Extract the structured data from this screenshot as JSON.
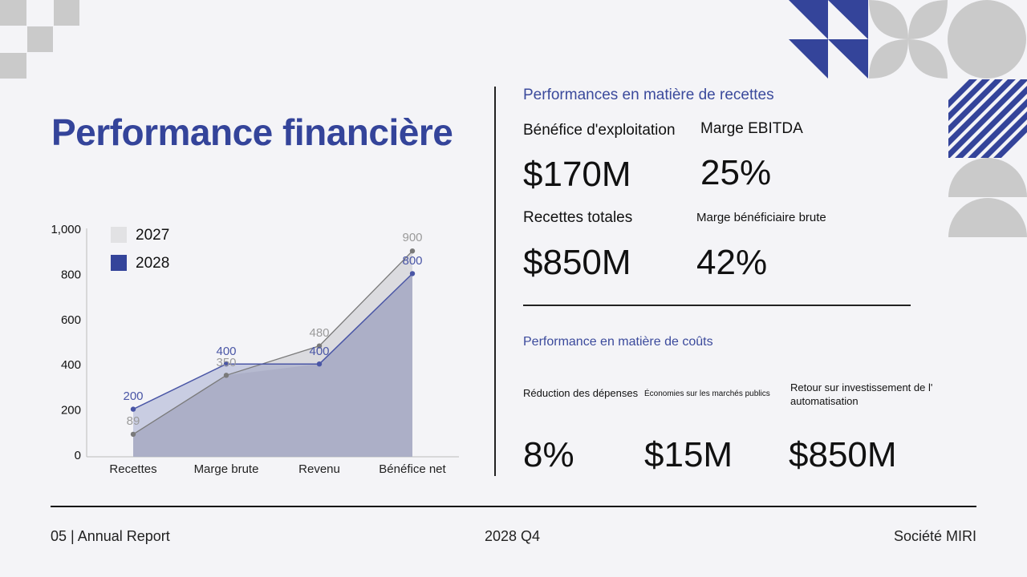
{
  "page": {
    "title": "Performance financière",
    "accent_color": "#34449a",
    "muted_color": "#c8c8cc"
  },
  "revenue_section": {
    "title": "Performances en matière de recettes",
    "kpis": [
      {
        "label": "Bénéfice d'exploitation",
        "value": "$170M"
      },
      {
        "label": "Marge EBITDA",
        "value": "25%"
      },
      {
        "label": "Recettes totales",
        "value": "$850M"
      },
      {
        "label": "Marge bénéficiaire brute",
        "value": "42%"
      }
    ]
  },
  "cost_section": {
    "title": "Performance en matière de coûts",
    "kpis": [
      {
        "label": "Réduction des dépenses",
        "value": "8%"
      },
      {
        "label": "Économies sur les marchés publics",
        "value": "$15M"
      },
      {
        "label": "Retour sur investissement de l' automatisation",
        "value": "$850M"
      }
    ]
  },
  "footer": {
    "left": "05 | Annual Report",
    "center": "2028 Q4",
    "right": "Société MIRI"
  },
  "chart_data": {
    "type": "area",
    "title": "",
    "xlabel": "",
    "ylabel": "",
    "categories": [
      "Recettes",
      "Marge brute",
      "Revenu",
      "Bénéfice net"
    ],
    "series": [
      {
        "name": "2027",
        "values": [
          89,
          350,
          480,
          900
        ],
        "color": "#d8d8dc",
        "line_color": "#7a7a7a",
        "label_color": "#9a9a9a"
      },
      {
        "name": "2028",
        "values": [
          200,
          400,
          400,
          800
        ],
        "color": "#34449a",
        "line_color": "#4a56a6",
        "label_color": "#4a56a6"
      }
    ],
    "yticks": [
      "0",
      "200",
      "400",
      "600",
      "800",
      "1,000"
    ],
    "ylim": [
      0,
      1000
    ],
    "grid": false,
    "legend_position": "top-left"
  }
}
